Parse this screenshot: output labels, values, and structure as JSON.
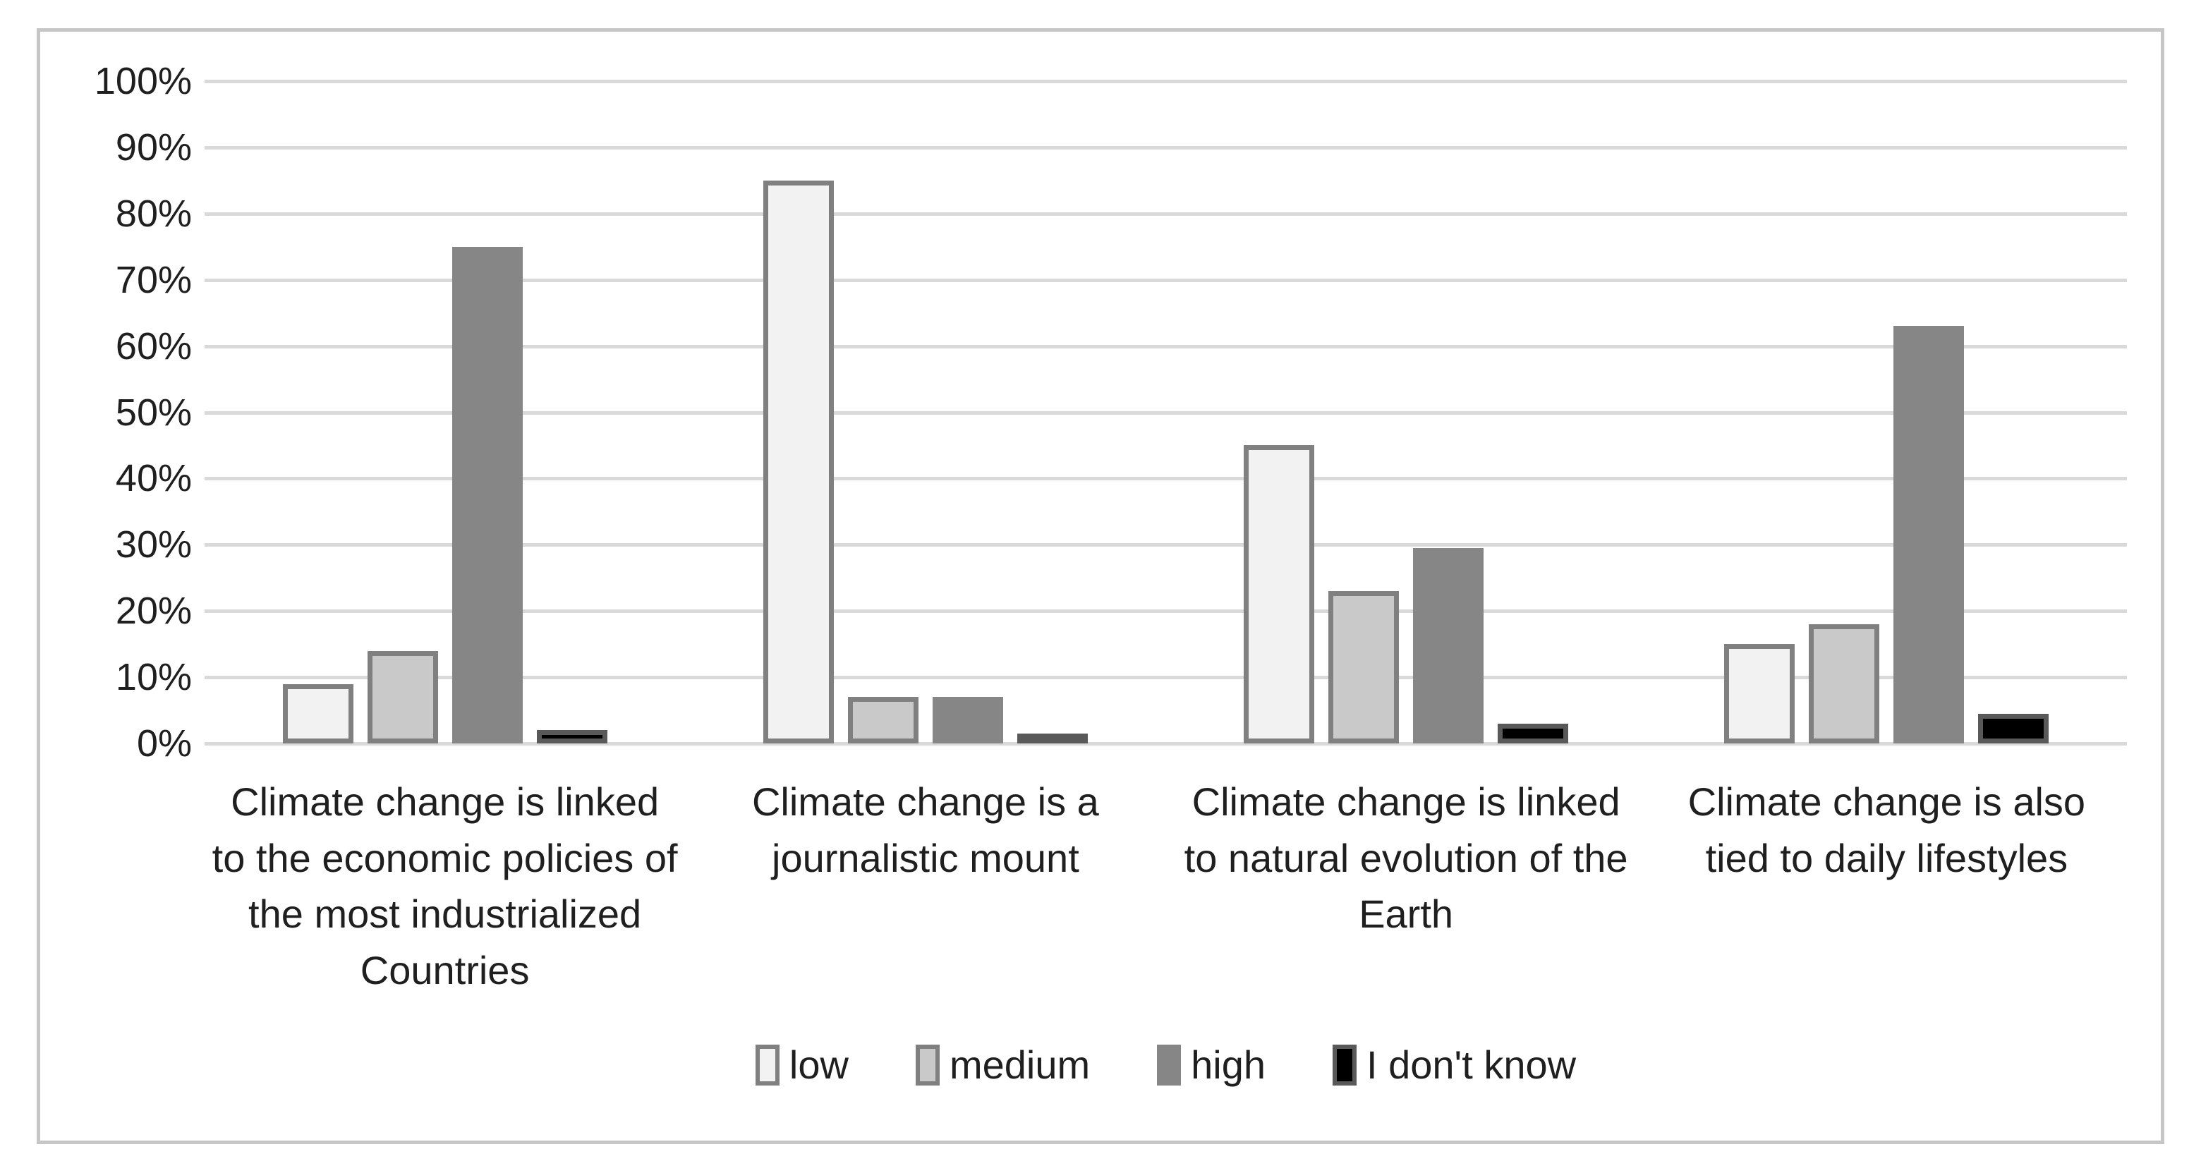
{
  "chart_data": {
    "type": "bar",
    "title": "",
    "xlabel": "",
    "ylabel": "",
    "ylim": [
      0,
      100
    ],
    "grid": true,
    "legend_position": "bottom",
    "yticks": [
      "100%",
      "90%",
      "80%",
      "70%",
      "60%",
      "50%",
      "40%",
      "30%",
      "20%",
      "10%",
      "0%"
    ],
    "categories": [
      "Climate change is linked to the economic policies of the most industrialized Countries",
      "Climate change is a journalistic mount",
      "Climate change is linked to natural evolution of the Earth",
      "Climate change is also tied to daily lifestyles"
    ],
    "series": [
      {
        "name": "low",
        "values": [
          9,
          85,
          45,
          15
        ],
        "fill": "#f2f2f2",
        "border": "#808080"
      },
      {
        "name": "medium",
        "values": [
          14,
          7,
          23,
          18
        ],
        "fill": "#c9c9c9",
        "border": "#808080"
      },
      {
        "name": "high",
        "values": [
          75,
          7,
          29.5,
          63
        ],
        "fill": "#868686",
        "border": "#868686"
      },
      {
        "name": "I don't know",
        "values": [
          2,
          1,
          3,
          4.5
        ],
        "fill": "#000000",
        "border": "#595959"
      }
    ]
  },
  "colors": {
    "gridline": "#d9d9d9",
    "frame_border": "#c6c6c6",
    "text": "#1f1f1f",
    "background": "#ffffff"
  }
}
